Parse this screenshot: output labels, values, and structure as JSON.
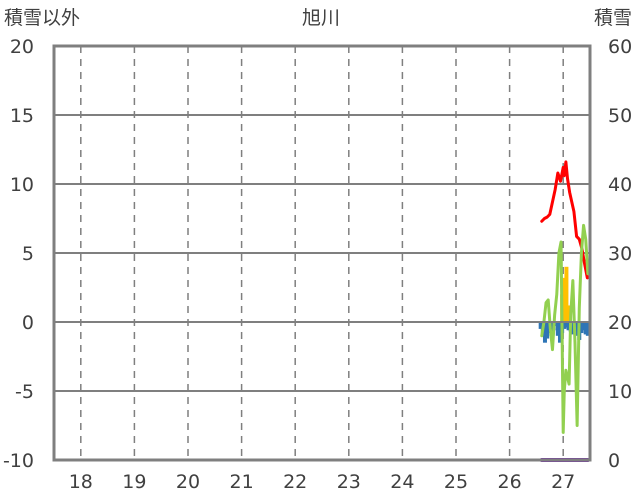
{
  "chart_data": {
    "type": "line",
    "title": "旭川",
    "ylabel_left": "積雪以外",
    "ylabel_right": "積雪",
    "x_categories": [
      "18",
      "19",
      "20",
      "21",
      "22",
      "23",
      "24",
      "25",
      "26",
      "27"
    ],
    "xlim": [
      17.5,
      27.5
    ],
    "ylim_left": [
      -10,
      20
    ],
    "ylim_right": [
      0,
      60
    ],
    "yticks_left": [
      "20",
      "15",
      "10",
      "5",
      "0",
      "-5",
      "-10"
    ],
    "yticks_right": [
      "60",
      "50",
      "40",
      "30",
      "20",
      "10",
      "0"
    ],
    "grid": true,
    "series": [
      {
        "axis": "left",
        "kind": "bar",
        "color": "#2e75b6",
        "x": [
          26.58,
          26.62,
          26.66,
          26.7,
          26.74,
          26.78,
          26.82,
          26.86,
          26.9,
          26.94,
          26.98,
          27.02,
          27.06,
          27.1,
          27.14,
          27.18,
          27.22,
          27.26,
          27.3,
          27.34,
          27.38,
          27.42,
          27.46
        ],
        "values": [
          -0.5,
          -1.0,
          -1.5,
          -1.2,
          -0.8,
          -1.0,
          -0.6,
          -0.3,
          -1.0,
          -1.5,
          -0.8,
          -0.5,
          -0.4,
          -0.6,
          -0.7,
          -0.9,
          -0.5,
          -1.0,
          -1.3,
          -0.8,
          -0.6,
          -0.9,
          -1.0
        ]
      },
      {
        "axis": "left",
        "kind": "bar",
        "color": "#ffc000",
        "x": [
          26.98,
          27.02,
          27.06,
          27.1
        ],
        "values": [
          2.0,
          3.2,
          4.0,
          1.2
        ]
      },
      {
        "axis": "left",
        "kind": "line",
        "color": "#ff0000",
        "x": [
          26.6,
          26.65,
          26.7,
          26.75,
          26.8,
          26.85,
          26.9,
          26.95,
          27.0,
          27.02,
          27.05,
          27.08,
          27.12,
          27.16,
          27.2,
          27.25,
          27.3,
          27.35,
          27.4,
          27.45
        ],
        "values": [
          7.3,
          7.5,
          7.6,
          7.8,
          8.7,
          9.6,
          10.8,
          10.2,
          11.2,
          10.6,
          11.6,
          10.4,
          9.4,
          8.7,
          8.0,
          6.2,
          6.0,
          5.3,
          4.2,
          3.2
        ]
      },
      {
        "axis": "left",
        "kind": "line",
        "color": "#92d050",
        "x": [
          26.6,
          26.64,
          26.68,
          26.72,
          26.76,
          26.8,
          26.84,
          26.88,
          26.92,
          26.96,
          27.0,
          27.02,
          27.05,
          27.08,
          27.11,
          27.14,
          27.18,
          27.22,
          27.26,
          27.3,
          27.34,
          27.38,
          27.42,
          27.46
        ],
        "values": [
          -1.0,
          0.0,
          1.4,
          1.6,
          -0.5,
          -2.0,
          0.5,
          2.0,
          5.0,
          5.8,
          -8.0,
          -5.0,
          -3.5,
          -4.0,
          -4.5,
          0.5,
          3.0,
          -1.5,
          -7.5,
          1.0,
          5.0,
          7.0,
          6.0,
          3.5
        ]
      },
      {
        "axis": "right",
        "kind": "line",
        "color": "#7030a0",
        "x": [
          26.6,
          27.46
        ],
        "values": [
          0,
          0
        ]
      }
    ]
  }
}
